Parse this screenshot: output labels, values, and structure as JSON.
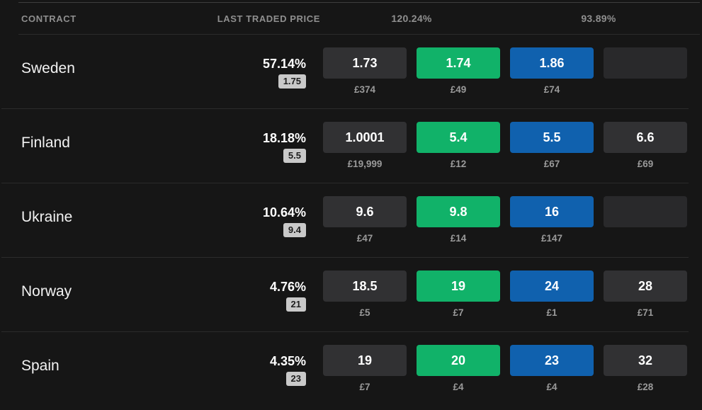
{
  "colors": {
    "background": "#161616",
    "back_best_cell": "#11b269",
    "lay_best_cell": "#1061ae",
    "cell_gray": "#313133",
    "cell_gray_empty": "#29292b",
    "divider": "#2b2b2b",
    "top_line": "#3d3d3d",
    "header_text": "#8f8f8f",
    "volume_text": "#9a9a9a",
    "badge_bg": "#c9c9c9",
    "badge_text": "#1d1d1d",
    "name_text": "#f2f2f2"
  },
  "header": {
    "contract": "CONTRACT",
    "last_traded_price": "LAST TRADED PRICE",
    "back_book_percent": "120.24%",
    "lay_book_percent": "93.89%"
  },
  "rows": [
    {
      "name": "Sweden",
      "probability": "57.14%",
      "last_traded": "1.75",
      "cells": [
        {
          "price": "1.73",
          "volume": "£374"
        },
        {
          "price": "1.74",
          "volume": "£49"
        },
        {
          "price": "1.86",
          "volume": "£74"
        },
        {
          "price": "",
          "volume": ""
        }
      ]
    },
    {
      "name": "Finland",
      "probability": "18.18%",
      "last_traded": "5.5",
      "cells": [
        {
          "price": "1.0001",
          "volume": "£19,999"
        },
        {
          "price": "5.4",
          "volume": "£12"
        },
        {
          "price": "5.5",
          "volume": "£67"
        },
        {
          "price": "6.6",
          "volume": "£69"
        }
      ]
    },
    {
      "name": "Ukraine",
      "probability": "10.64%",
      "last_traded": "9.4",
      "cells": [
        {
          "price": "9.6",
          "volume": "£47"
        },
        {
          "price": "9.8",
          "volume": "£14"
        },
        {
          "price": "16",
          "volume": "£147"
        },
        {
          "price": "",
          "volume": ""
        }
      ]
    },
    {
      "name": "Norway",
      "probability": "4.76%",
      "last_traded": "21",
      "cells": [
        {
          "price": "18.5",
          "volume": "£5"
        },
        {
          "price": "19",
          "volume": "£7"
        },
        {
          "price": "24",
          "volume": "£1"
        },
        {
          "price": "28",
          "volume": "£71"
        }
      ]
    },
    {
      "name": "Spain",
      "probability": "4.35%",
      "last_traded": "23",
      "cells": [
        {
          "price": "19",
          "volume": "£7"
        },
        {
          "price": "20",
          "volume": "£4"
        },
        {
          "price": "23",
          "volume": "£4"
        },
        {
          "price": "32",
          "volume": "£28"
        }
      ]
    }
  ]
}
